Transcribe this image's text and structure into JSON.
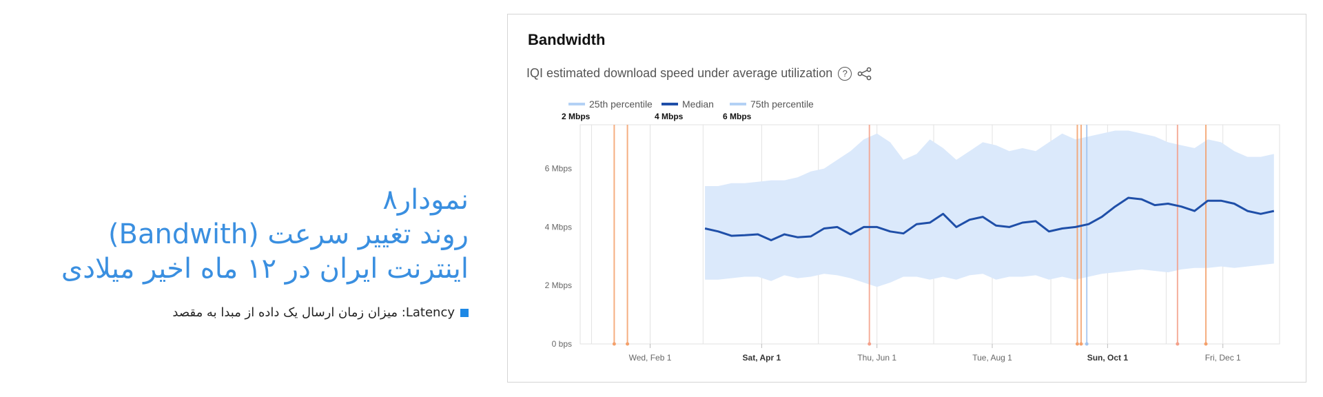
{
  "caption": {
    "title": "نمودار۸",
    "line2": "روند تغییر سرعت (Bandwith)",
    "line3": "اینترنت ایران در ۱۲ ماه اخیر میلادی",
    "note": "Latency: میزان زمان ارسال یک داده از مبدا به مقصد",
    "accent": "#3a8fe0",
    "bullet_color": "#1e88e5"
  },
  "card": {
    "title": "Bandwidth",
    "subtitle": "IQI estimated download speed under average utilization",
    "help_icon": "question-circle-icon",
    "share_icon": "share-nodes-icon"
  },
  "chart_data": {
    "type": "area",
    "title": "Bandwidth",
    "subtitle": "IQI estimated download speed under average utilization",
    "legend": [
      {
        "name": "25th percentile",
        "value": "2 Mbps",
        "color": "#b3d1f5"
      },
      {
        "name": "Median",
        "value": "4 Mbps",
        "color": "#1f4fa8"
      },
      {
        "name": "75th percentile",
        "value": "6 Mbps",
        "color": "#b3d1f5"
      }
    ],
    "y_ticks": [
      "0 bps",
      "2 Mbps",
      "4 Mbps",
      "6 Mbps"
    ],
    "ylim": [
      0,
      7.5
    ],
    "x_ticks": [
      {
        "label": "Wed, Feb 1",
        "date": "2023-02-01",
        "bold": false
      },
      {
        "label": "Sat, Apr 1",
        "date": "2023-04-01",
        "bold": true
      },
      {
        "label": "Thu, Jun 1",
        "date": "2023-06-01",
        "bold": false
      },
      {
        "label": "Tue, Aug 1",
        "date": "2023-08-01",
        "bold": false
      },
      {
        "label": "Sun, Oct 1",
        "date": "2023-10-01",
        "bold": true
      },
      {
        "label": "Fri, Dec 1",
        "date": "2023-12-01",
        "bold": false
      }
    ],
    "xlim": [
      "2022-12-26",
      "2023-12-31"
    ],
    "grid": true,
    "series": [
      {
        "name": "Median",
        "points": [
          [
            "2023-03-02",
            3.95
          ],
          [
            "2023-03-09",
            3.85
          ],
          [
            "2023-03-16",
            3.7
          ],
          [
            "2023-03-23",
            3.72
          ],
          [
            "2023-03-30",
            3.75
          ],
          [
            "2023-04-06",
            3.55
          ],
          [
            "2023-04-13",
            3.75
          ],
          [
            "2023-04-20",
            3.65
          ],
          [
            "2023-04-27",
            3.68
          ],
          [
            "2023-05-04",
            3.95
          ],
          [
            "2023-05-11",
            4.0
          ],
          [
            "2023-05-18",
            3.75
          ],
          [
            "2023-05-25",
            4.0
          ],
          [
            "2023-06-01",
            4.0
          ],
          [
            "2023-06-08",
            3.85
          ],
          [
            "2023-06-15",
            3.78
          ],
          [
            "2023-06-22",
            4.1
          ],
          [
            "2023-06-29",
            4.15
          ],
          [
            "2023-07-06",
            4.45
          ],
          [
            "2023-07-13",
            4.0
          ],
          [
            "2023-07-20",
            4.25
          ],
          [
            "2023-07-27",
            4.35
          ],
          [
            "2023-08-03",
            4.05
          ],
          [
            "2023-08-10",
            4.0
          ],
          [
            "2023-08-17",
            4.15
          ],
          [
            "2023-08-24",
            4.2
          ],
          [
            "2023-08-31",
            3.85
          ],
          [
            "2023-09-07",
            3.95
          ],
          [
            "2023-09-14",
            4.0
          ],
          [
            "2023-09-21",
            4.1
          ],
          [
            "2023-09-28",
            4.35
          ],
          [
            "2023-10-05",
            4.7
          ],
          [
            "2023-10-12",
            5.0
          ],
          [
            "2023-10-19",
            4.95
          ],
          [
            "2023-10-26",
            4.75
          ],
          [
            "2023-11-02",
            4.8
          ],
          [
            "2023-11-09",
            4.7
          ],
          [
            "2023-11-16",
            4.55
          ],
          [
            "2023-11-23",
            4.9
          ],
          [
            "2023-11-30",
            4.9
          ],
          [
            "2023-12-07",
            4.8
          ],
          [
            "2023-12-14",
            4.55
          ],
          [
            "2023-12-21",
            4.45
          ],
          [
            "2023-12-28",
            4.55
          ]
        ]
      },
      {
        "name": "75th percentile",
        "values": [
          5.4,
          5.4,
          5.5,
          5.5,
          5.55,
          5.6,
          5.6,
          5.7,
          5.9,
          6.0,
          6.3,
          6.6,
          7.0,
          7.2,
          6.9,
          6.3,
          6.5,
          7.0,
          6.7,
          6.3,
          6.6,
          6.9,
          6.8,
          6.6,
          6.7,
          6.6,
          6.9,
          7.2,
          7.0,
          7.1,
          7.2,
          7.3,
          7.3,
          7.2,
          7.1,
          6.9,
          6.8,
          6.7,
          7.0,
          6.9,
          6.6,
          6.4,
          6.4,
          6.5
        ]
      },
      {
        "name": "25th percentile",
        "values": [
          2.2,
          2.2,
          2.25,
          2.3,
          2.3,
          2.15,
          2.35,
          2.25,
          2.3,
          2.4,
          2.35,
          2.25,
          2.1,
          1.95,
          2.1,
          2.3,
          2.3,
          2.2,
          2.3,
          2.2,
          2.35,
          2.4,
          2.2,
          2.3,
          2.3,
          2.35,
          2.2,
          2.3,
          2.2,
          2.3,
          2.4,
          2.45,
          2.5,
          2.55,
          2.5,
          2.45,
          2.55,
          2.6,
          2.6,
          2.65,
          2.6,
          2.65,
          2.7,
          2.75
        ]
      }
    ],
    "event_lines": [
      {
        "date": "2023-01-13",
        "color": "#f4a06b"
      },
      {
        "date": "2023-01-20",
        "color": "#f4a06b"
      },
      {
        "date": "2023-05-28",
        "color": "#f4a08a"
      },
      {
        "date": "2023-09-15",
        "color": "#f4a06b"
      },
      {
        "date": "2023-09-17",
        "color": "#f4a06b"
      },
      {
        "date": "2023-09-20",
        "color": "#9fc3ef"
      },
      {
        "date": "2023-11-07",
        "color": "#f4a08a"
      },
      {
        "date": "2023-11-22",
        "color": "#f4a06b"
      }
    ],
    "colors": {
      "median": "#1f4fa8",
      "band": "#dbe9fb",
      "grid": "#e2e2e2"
    }
  }
}
